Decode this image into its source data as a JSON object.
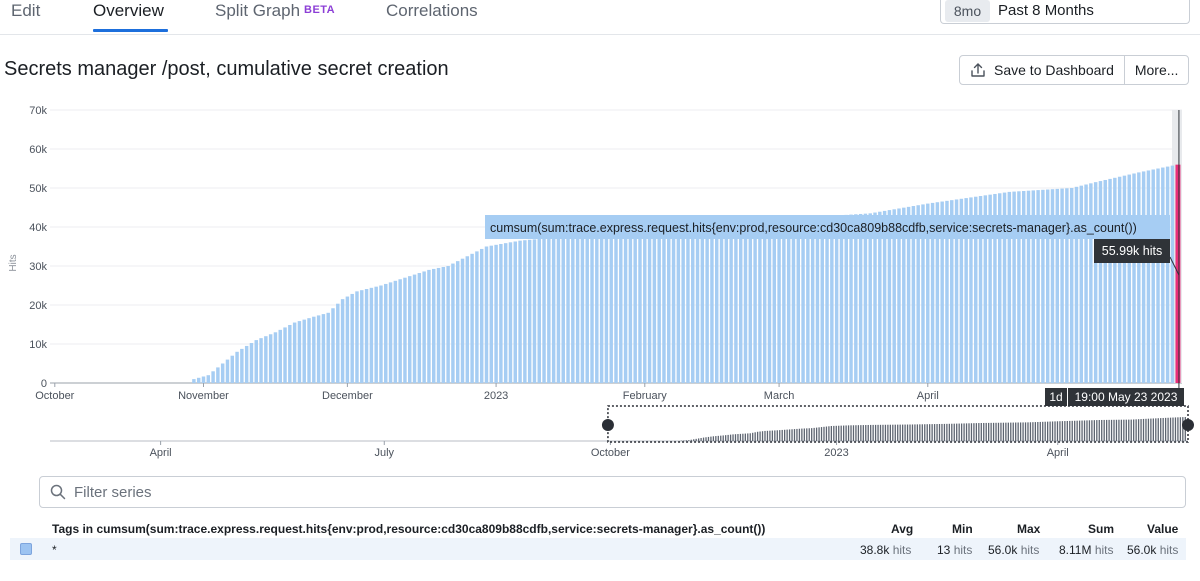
{
  "tabs": [
    {
      "label": "Edit"
    },
    {
      "label": "Overview"
    },
    {
      "label": "Split Graph",
      "badge": "BETA"
    },
    {
      "label": "Correlations"
    }
  ],
  "timeframe": {
    "badge": "8mo",
    "label": "Past 8 Months"
  },
  "title": "Secrets manager /post, cumulative secret creation",
  "buttons": {
    "save": "Save to Dashboard",
    "more": "More..."
  },
  "icons": {
    "save": "upload-icon",
    "search": "search-icon"
  },
  "colors": {
    "bar": "#a6cdf3",
    "highlight": "#e8307a",
    "accent": "#1d6fdc",
    "beta": "#8c3fd6"
  },
  "chart_data": {
    "type": "bar",
    "ylabel": "Hits",
    "ylim": [
      0,
      70000
    ],
    "yticks": [
      {
        "v": 0,
        "t": "0"
      },
      {
        "v": 10000,
        "t": "10k"
      },
      {
        "v": 20000,
        "t": "20k"
      },
      {
        "v": 30000,
        "t": "30k"
      },
      {
        "v": 40000,
        "t": "40k"
      },
      {
        "v": 50000,
        "t": "50k"
      },
      {
        "v": 60000,
        "t": "60k"
      },
      {
        "v": 70000,
        "t": "70k"
      }
    ],
    "x_start": "2022-09-30",
    "x_end": "2023-05-24",
    "xticks": [
      {
        "date": "2022-10-01",
        "label": "October"
      },
      {
        "date": "2022-11-01",
        "label": "November"
      },
      {
        "date": "2022-12-01",
        "label": "December"
      },
      {
        "date": "2023-01-01",
        "label": "2023"
      },
      {
        "date": "2023-02-01",
        "label": "February"
      },
      {
        "date": "2023-03-01",
        "label": "March"
      },
      {
        "date": "2023-04-01",
        "label": "April"
      }
    ],
    "series": [
      {
        "name": "cumsum(sum:trace.express.request.hits{env:prod,resource:cd30ca809b88cdfb,service:secrets-manager}.as_count())",
        "points": [
          [
            "2022-10-29",
            0
          ],
          [
            "2022-10-30",
            1000
          ],
          [
            "2022-11-02",
            2000
          ],
          [
            "2022-11-05",
            5000
          ],
          [
            "2022-11-08",
            8000
          ],
          [
            "2022-11-12",
            11000
          ],
          [
            "2022-11-16",
            13000
          ],
          [
            "2022-11-20",
            15500
          ],
          [
            "2022-11-24",
            17000
          ],
          [
            "2022-11-27",
            18000
          ],
          [
            "2022-11-30",
            21500
          ],
          [
            "2022-12-03",
            23500
          ],
          [
            "2022-12-08",
            25000
          ],
          [
            "2022-12-13",
            27000
          ],
          [
            "2022-12-18",
            29000
          ],
          [
            "2022-12-22",
            30000
          ],
          [
            "2022-12-26",
            32500
          ],
          [
            "2022-12-30",
            35000
          ],
          [
            "2023-01-06",
            36500
          ],
          [
            "2023-01-15",
            37500
          ],
          [
            "2023-01-31",
            38500
          ],
          [
            "2023-02-15",
            40000
          ],
          [
            "2023-03-01",
            42000
          ],
          [
            "2023-03-20",
            43500
          ],
          [
            "2023-04-01",
            46000
          ],
          [
            "2023-04-18",
            49000
          ],
          [
            "2023-05-01",
            50000
          ],
          [
            "2023-05-06",
            51500
          ],
          [
            "2023-05-15",
            54000
          ],
          [
            "2023-05-23",
            55990
          ]
        ]
      }
    ],
    "tooltip": {
      "series_label": "cumsum(sum:trace.express.request.hits{env:prod,resource:cd30ca809b88cdfb,service:secrets-manager}.as_count())",
      "value_label": "55.99k hits",
      "rollup": "1d",
      "time_label": "19:00 May 23 2023"
    },
    "navigator": {
      "xticks": [
        {
          "date": "2022-04-01",
          "label": "April"
        },
        {
          "date": "2022-07-01",
          "label": "July"
        },
        {
          "date": "2022-10-01",
          "label": "October"
        },
        {
          "date": "2023-01-01",
          "label": "2023"
        },
        {
          "date": "2023-04-01",
          "label": "April"
        }
      ],
      "x_start": "2022-02-15",
      "x_end": "2023-05-24",
      "selection": [
        "2022-09-30",
        "2023-05-24"
      ]
    }
  },
  "filter": {
    "placeholder": "Filter series"
  },
  "table": {
    "headers": {
      "tags": "Tags in cumsum(sum:trace.express.request.hits{env:prod,resource:cd30ca809b88cdfb,service:secrets-manager}.as_count())",
      "avg": "Avg",
      "min": "Min",
      "max": "Max",
      "sum": "Sum",
      "value": "Value"
    },
    "rows": [
      {
        "tag": "*",
        "avg": "38.8k",
        "min": "13",
        "max": "56.0k",
        "sum": "8.11M",
        "value": "56.0k",
        "unit": "hits"
      }
    ]
  }
}
